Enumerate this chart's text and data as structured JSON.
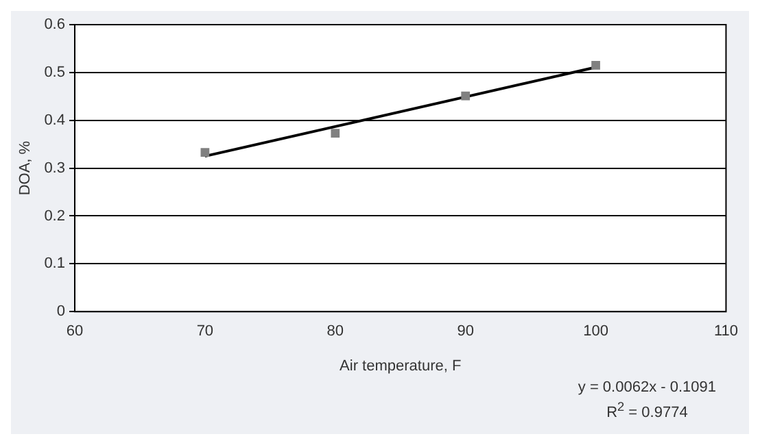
{
  "chart_data": {
    "type": "scatter",
    "xlabel": "Air temperature, F",
    "ylabel": "DOA, %",
    "series": [
      {
        "type": "scatter",
        "color": "#808080",
        "marker": "square",
        "x": [
          70,
          80,
          90,
          100
        ],
        "values": [
          0.333,
          0.373,
          0.451,
          0.515
        ]
      },
      {
        "type": "line",
        "color": "#000000",
        "marker": "none",
        "line_style": "solid",
        "x": [
          70,
          100
        ],
        "values": [
          0.325,
          0.511
        ]
      }
    ],
    "xlim": [
      60,
      110
    ],
    "xticks": [
      60,
      70,
      80,
      90,
      100,
      110
    ],
    "ylim": [
      0,
      0.6
    ],
    "yticks": [
      0,
      0.1,
      0.2,
      0.3,
      0.4,
      0.5,
      0.6
    ],
    "grid": "y",
    "legend": false,
    "annotations": [
      "y = 0.0062x - 0.1091",
      "R$^{2}$ = 0.9774"
    ]
  }
}
